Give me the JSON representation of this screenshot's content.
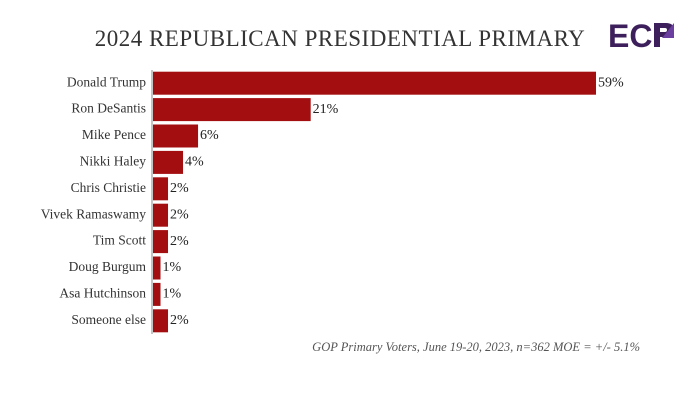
{
  "header": {
    "title": "2024 REPUBLICAN PRESIDENTIAL PRIMARY",
    "logo_text": "ECP"
  },
  "colors": {
    "bar": "#a30f10",
    "logo": "#3d1f5c"
  },
  "chart_data": {
    "type": "bar",
    "orientation": "horizontal",
    "title": "2024 REPUBLICAN PRESIDENTIAL PRIMARY",
    "categories": [
      "Donald Trump",
      "Ron DeSantis",
      "Mike Pence",
      "Nikki Haley",
      "Chris Christie",
      "Vivek Ramaswamy",
      "Tim Scott",
      "Doug Burgum",
      "Asa Hutchinson",
      "Someone else"
    ],
    "values": [
      59,
      21,
      6,
      4,
      2,
      2,
      2,
      1,
      1,
      2
    ],
    "value_labels": [
      "59%",
      "21%",
      "6%",
      "4%",
      "2%",
      "2%",
      "2%",
      "1%",
      "1%",
      "2%"
    ],
    "xlim": [
      0,
      59
    ],
    "grid": false,
    "legend": "none",
    "annotation": "GOP Primary Voters, June 19-20, 2023, n=362 MOE = +/- 5.1%"
  }
}
